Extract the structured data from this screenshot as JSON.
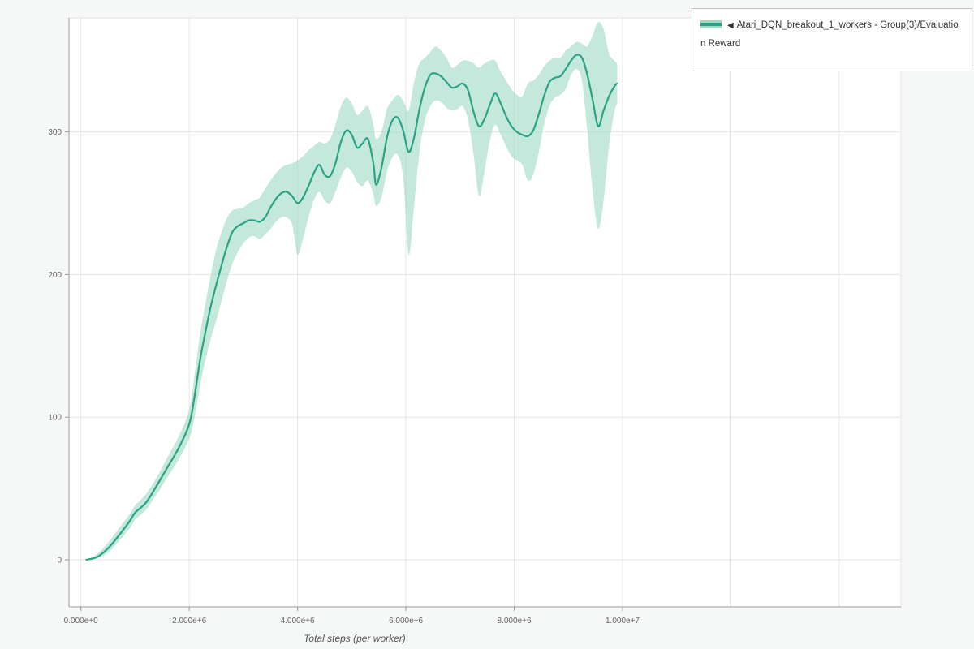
{
  "colors": {
    "page_bg": "#f6f7f7",
    "plot_bg": "#ffffff",
    "grid": "#e6e6e6",
    "axis": "#999999",
    "tick_text": "#666666",
    "line": "#29a385",
    "band": "#93d6bd",
    "legend_border": "#c2c2c2"
  },
  "legend": {
    "marker": "◀",
    "series_label": "Atari_DQN_breakout_1_workers - Group(3)/Evaluation Reward"
  },
  "chart_data": {
    "type": "line",
    "title": "",
    "xlabel": "Total steps (per worker)",
    "ylabel": "",
    "grid": true,
    "legend_position": "top-right",
    "xlim_e6": [
      -0.22,
      15.14
    ],
    "ylim": [
      -33,
      380
    ],
    "y_ticks": [
      0,
      100,
      200,
      300
    ],
    "grid_y": [
      0,
      100,
      200,
      300
    ],
    "grid_x_e6": [
      0,
      2,
      4,
      6,
      8,
      10,
      12,
      14
    ],
    "x_ticks": [
      {
        "label": "0.000e+0",
        "value_e6": 0
      },
      {
        "label": "2.000e+6",
        "value_e6": 2
      },
      {
        "label": "4.000e+6",
        "value_e6": 4
      },
      {
        "label": "6.000e+6",
        "value_e6": 6
      },
      {
        "label": "8.000e+6",
        "value_e6": 8
      },
      {
        "label": "1.000e+7",
        "value_e6": 10
      }
    ],
    "series": [
      {
        "name": "Atari_DQN_breakout_1_workers - Group(3)/Evaluation Reward",
        "color": "#29a385",
        "band_color": "#93d6bd",
        "x_e6": [
          0.1,
          0.3,
          0.5,
          0.7,
          0.9,
          1.0,
          1.2,
          1.4,
          1.6,
          1.8,
          2.0,
          2.1,
          2.2,
          2.3,
          2.4,
          2.5,
          2.6,
          2.7,
          2.8,
          2.9,
          3.0,
          3.1,
          3.2,
          3.3,
          3.4,
          3.5,
          3.6,
          3.7,
          3.8,
          3.9,
          4.0,
          4.1,
          4.2,
          4.3,
          4.4,
          4.5,
          4.6,
          4.7,
          4.8,
          4.9,
          5.0,
          5.1,
          5.2,
          5.3,
          5.4,
          5.45,
          5.55,
          5.65,
          5.75,
          5.85,
          5.95,
          6.05,
          6.15,
          6.25,
          6.35,
          6.45,
          6.55,
          6.65,
          6.75,
          6.85,
          6.95,
          7.05,
          7.15,
          7.25,
          7.35,
          7.45,
          7.55,
          7.65,
          7.75,
          7.85,
          7.95,
          8.05,
          8.15,
          8.25,
          8.35,
          8.45,
          8.55,
          8.65,
          8.75,
          8.85,
          8.95,
          9.05,
          9.15,
          9.25,
          9.35,
          9.45,
          9.55,
          9.65,
          9.75,
          9.85,
          9.9
        ],
        "mean": [
          0,
          2,
          8,
          17,
          27,
          33,
          40,
          52,
          65,
          78,
          95,
          115,
          140,
          160,
          178,
          193,
          207,
          220,
          230,
          234,
          236,
          238,
          238,
          237,
          240,
          247,
          253,
          257,
          258,
          255,
          250,
          254,
          262,
          271,
          277,
          270,
          269,
          278,
          293,
          301,
          298,
          289,
          292,
          295,
          278,
          263,
          275,
          296,
          308,
          310,
          301,
          286,
          296,
          316,
          331,
          340,
          341,
          339,
          335,
          331,
          332,
          334,
          329,
          314,
          304,
          309,
          319,
          327,
          320,
          311,
          304,
          300,
          298,
          297,
          301,
          312,
          325,
          335,
          338,
          339,
          344,
          350,
          354,
          352,
          340,
          322,
          304,
          315,
          325,
          332,
          334
        ],
        "lower": [
          0,
          1,
          5,
          13,
          22,
          28,
          35,
          46,
          58,
          70,
          85,
          100,
          122,
          140,
          155,
          168,
          182,
          196,
          208,
          216,
          222,
          226,
          227,
          225,
          228,
          232,
          237,
          240,
          240,
          235,
          214,
          225,
          240,
          252,
          258,
          252,
          250,
          258,
          268,
          275,
          272,
          265,
          262,
          266,
          256,
          248,
          254,
          272,
          282,
          284,
          268,
          214,
          248,
          286,
          308,
          318,
          322,
          321,
          317,
          315,
          316,
          318,
          308,
          284,
          255,
          272,
          294,
          305,
          298,
          290,
          283,
          280,
          277,
          266,
          270,
          285,
          305,
          318,
          324,
          326,
          330,
          340,
          344,
          336,
          300,
          258,
          232,
          252,
          290,
          314,
          320
        ],
        "upper": [
          0,
          4,
          12,
          22,
          32,
          38,
          46,
          58,
          72,
          86,
          105,
          130,
          158,
          180,
          200,
          218,
          230,
          240,
          245,
          246,
          247,
          250,
          252,
          254,
          260,
          266,
          271,
          275,
          277,
          278,
          280,
          283,
          287,
          290,
          293,
          292,
          295,
          305,
          318,
          324,
          320,
          312,
          315,
          318,
          305,
          295,
          300,
          316,
          322,
          326,
          322,
          315,
          335,
          348,
          352,
          356,
          360,
          357,
          352,
          345,
          347,
          350,
          350,
          348,
          345,
          348,
          350,
          350,
          342,
          336,
          330,
          326,
          325,
          334,
          336,
          340,
          346,
          350,
          352,
          352,
          357,
          360,
          363,
          362,
          360,
          368,
          377,
          372,
          355,
          350,
          348
        ]
      }
    ]
  }
}
